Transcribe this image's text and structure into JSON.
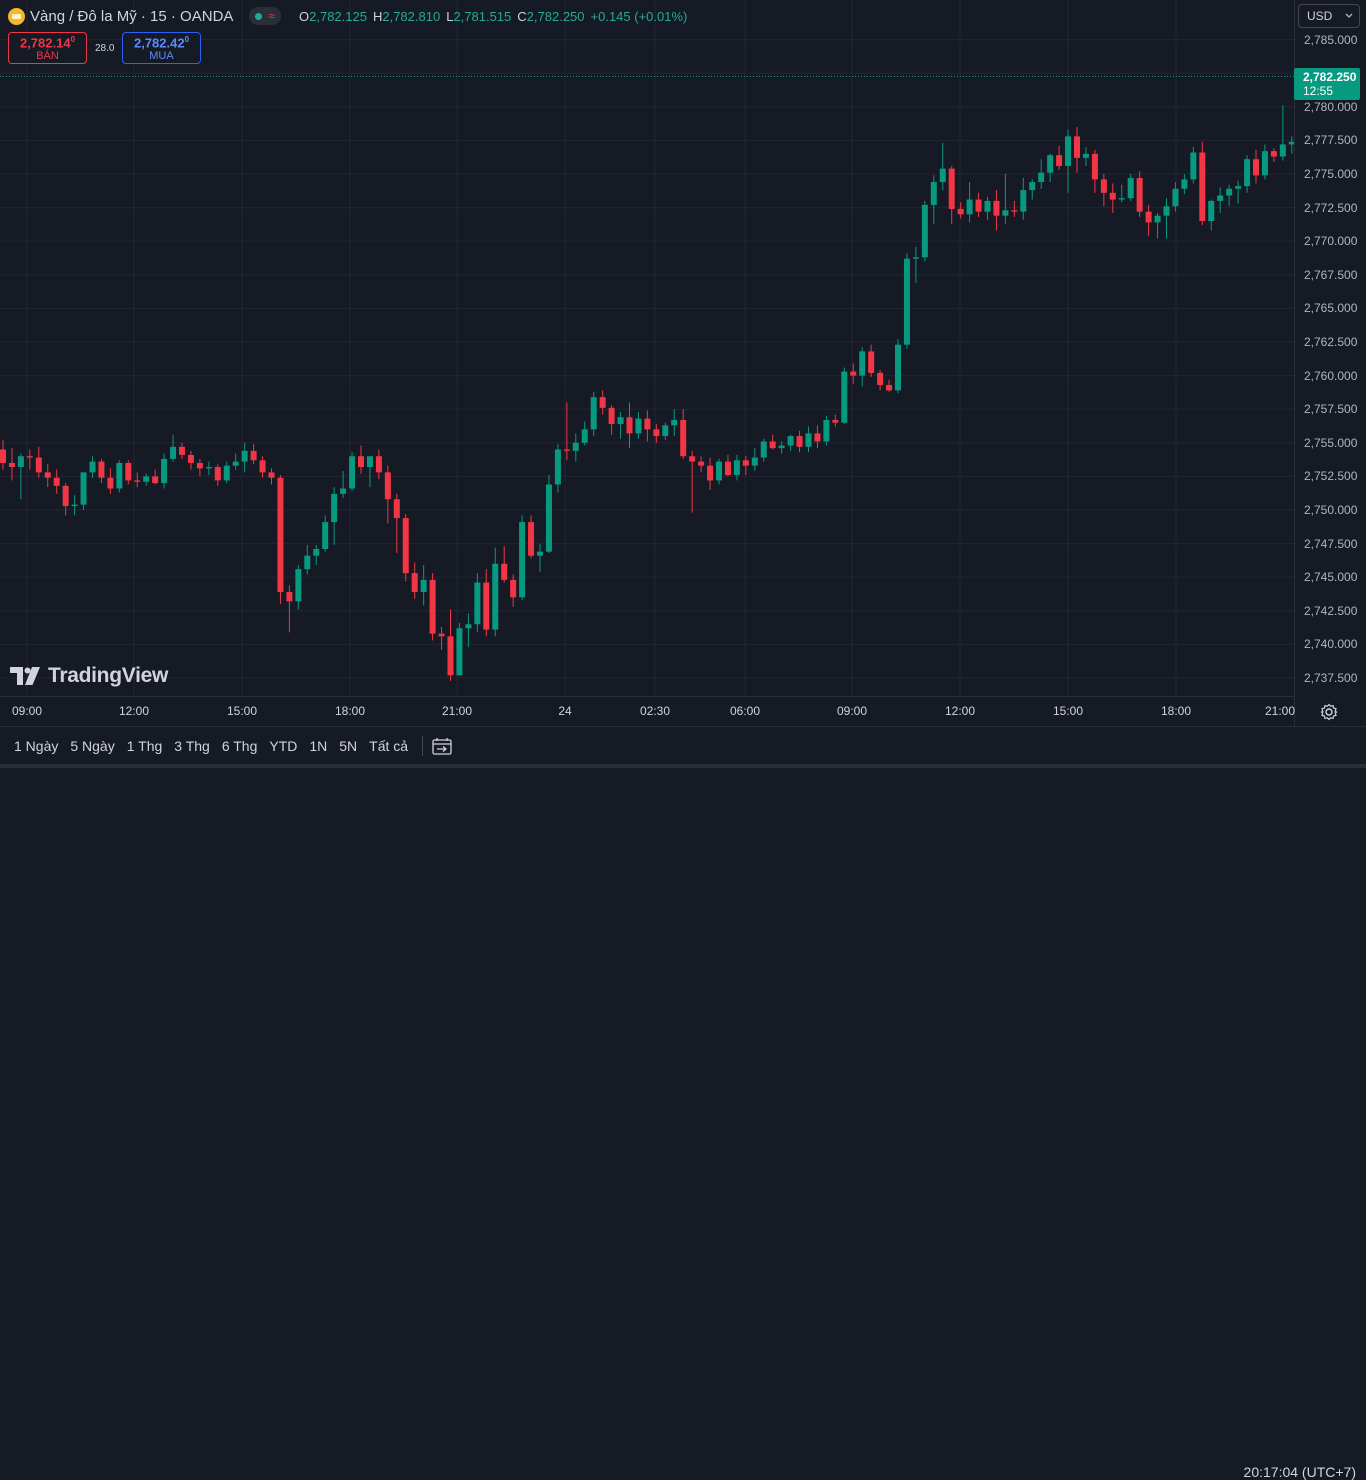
{
  "header": {
    "symbol": "Vàng / Đô la Mỹ · 15 · OANDA",
    "symbol_icon": "gold-coin-icon",
    "ohlc": [
      {
        "k": "O",
        "v": "2,782.125"
      },
      {
        "k": "H",
        "v": "2,782.810"
      },
      {
        "k": "L",
        "v": "2,781.515"
      },
      {
        "k": "C",
        "v": "2,782.250"
      }
    ],
    "change": "+0.145 (+0.01%)"
  },
  "trade": {
    "sell_price_main": "2,782.14",
    "sell_price_sup": "0",
    "sell_label": "BÁN",
    "spread": "28.0",
    "buy_price_main": "2,782.42",
    "buy_price_sup": "0",
    "buy_label": "MUA"
  },
  "currency": "USD",
  "last_price": {
    "price": "2,782.250",
    "countdown": "12:55"
  },
  "colors": {
    "up": "#089981",
    "down": "#f23645",
    "background": "#161a25",
    "grid": "#232632"
  },
  "brand": "TradingView",
  "time_labels": [
    "09:00",
    "12:00",
    "15:00",
    "18:00",
    "21:00",
    "24",
    "02:30",
    "06:00",
    "09:00",
    "12:00",
    "15:00",
    "18:00",
    "21:00"
  ],
  "ranges": [
    "1 Ngày",
    "5 Ngày",
    "1 Thg",
    "3 Thg",
    "6 Thg",
    "YTD",
    "1N",
    "5N",
    "Tất cả"
  ],
  "clock": "20:17:04 (UTC+7)",
  "chart_data": {
    "type": "candlestick",
    "y_tick_labels": [
      "2,785.000",
      "2,782.500",
      "2,780.000",
      "2,777.500",
      "2,775.000",
      "2,772.500",
      "2,770.000",
      "2,767.500",
      "2,765.000",
      "2,762.500",
      "2,760.000",
      "2,757.500",
      "2,755.000",
      "2,752.500",
      "2,750.000",
      "2,747.500",
      "2,745.000",
      "2,742.500",
      "2,740.000",
      "2,737.500"
    ],
    "ylim": [
      2736.0,
      2786.0
    ],
    "interval": "15m",
    "candles": [
      [
        2754.5,
        2755.2,
        2753.0,
        2753.5
      ],
      [
        2753.5,
        2754.6,
        2752.2,
        2753.2
      ],
      [
        2753.2,
        2754.2,
        2750.8,
        2754.0
      ],
      [
        2754.0,
        2754.5,
        2753.0,
        2753.9
      ],
      [
        2753.9,
        2754.7,
        2752.4,
        2752.8
      ],
      [
        2752.8,
        2753.4,
        2751.7,
        2752.4
      ],
      [
        2752.4,
        2753.0,
        2751.2,
        2751.8
      ],
      [
        2751.8,
        2752.0,
        2749.6,
        2750.3
      ],
      [
        2750.3,
        2751.1,
        2749.6,
        2750.4
      ],
      [
        2750.4,
        2752.8,
        2750.0,
        2752.8
      ],
      [
        2752.8,
        2754.0,
        2752.4,
        2753.6
      ],
      [
        2753.6,
        2753.8,
        2752.0,
        2752.4
      ],
      [
        2752.4,
        2753.1,
        2751.2,
        2751.6
      ],
      [
        2751.6,
        2753.7,
        2751.3,
        2753.5
      ],
      [
        2753.5,
        2753.7,
        2751.9,
        2752.2
      ],
      [
        2752.2,
        2752.8,
        2751.7,
        2752.1
      ],
      [
        2752.1,
        2752.7,
        2751.8,
        2752.5
      ],
      [
        2752.5,
        2753.0,
        2751.9,
        2752.0
      ],
      [
        2752.0,
        2754.2,
        2751.6,
        2753.8
      ],
      [
        2753.8,
        2755.6,
        2753.6,
        2754.7
      ],
      [
        2754.7,
        2755.0,
        2753.8,
        2754.1
      ],
      [
        2754.1,
        2754.4,
        2753.0,
        2753.5
      ],
      [
        2753.5,
        2753.8,
        2752.5,
        2753.1
      ],
      [
        2753.1,
        2753.6,
        2752.6,
        2753.2
      ],
      [
        2753.2,
        2753.4,
        2751.8,
        2752.2
      ],
      [
        2752.2,
        2753.6,
        2752.0,
        2753.3
      ],
      [
        2753.3,
        2754.2,
        2753.0,
        2753.6
      ],
      [
        2753.6,
        2755.0,
        2752.8,
        2754.4
      ],
      [
        2754.4,
        2754.9,
        2753.4,
        2753.7
      ],
      [
        2753.7,
        2754.0,
        2752.4,
        2752.8
      ],
      [
        2752.8,
        2753.1,
        2751.9,
        2752.4
      ],
      [
        2752.4,
        2752.6,
        2743.0,
        2743.9
      ],
      [
        2743.9,
        2744.4,
        2740.9,
        2743.2
      ],
      [
        2743.2,
        2745.9,
        2742.6,
        2745.6
      ],
      [
        2745.6,
        2747.4,
        2745.2,
        2746.6
      ],
      [
        2746.6,
        2747.4,
        2745.9,
        2747.1
      ],
      [
        2747.1,
        2749.6,
        2746.9,
        2749.1
      ],
      [
        2749.1,
        2751.7,
        2747.4,
        2751.2
      ],
      [
        2751.2,
        2752.9,
        2750.9,
        2751.6
      ],
      [
        2751.6,
        2754.3,
        2751.4,
        2754.0
      ],
      [
        2754.0,
        2754.8,
        2752.7,
        2753.2
      ],
      [
        2753.2,
        2754.0,
        2751.7,
        2754.0
      ],
      [
        2754.0,
        2754.5,
        2752.3,
        2752.8
      ],
      [
        2752.8,
        2753.3,
        2749.0,
        2750.8
      ],
      [
        2750.8,
        2751.2,
        2746.8,
        2749.4
      ],
      [
        2749.4,
        2749.7,
        2744.7,
        2745.3
      ],
      [
        2745.3,
        2746.1,
        2743.4,
        2743.9
      ],
      [
        2743.9,
        2745.9,
        2742.9,
        2744.8
      ],
      [
        2744.8,
        2745.3,
        2740.3,
        2740.8
      ],
      [
        2740.8,
        2741.3,
        2739.6,
        2740.6
      ],
      [
        2740.6,
        2742.6,
        2737.3,
        2737.7
      ],
      [
        2737.7,
        2741.6,
        2737.7,
        2741.2
      ],
      [
        2741.2,
        2742.3,
        2739.8,
        2741.5
      ],
      [
        2741.5,
        2745.3,
        2740.9,
        2744.6
      ],
      [
        2744.6,
        2745.6,
        2740.6,
        2741.1
      ],
      [
        2741.1,
        2747.2,
        2740.6,
        2746.0
      ],
      [
        2746.0,
        2747.3,
        2744.6,
        2744.8
      ],
      [
        2744.8,
        2745.2,
        2742.8,
        2743.5
      ],
      [
        2743.5,
        2749.6,
        2743.3,
        2749.1
      ],
      [
        2749.1,
        2749.6,
        2746.4,
        2746.6
      ],
      [
        2746.6,
        2747.5,
        2745.4,
        2746.9
      ],
      [
        2746.9,
        2752.6,
        2746.8,
        2751.9
      ],
      [
        2751.9,
        2754.9,
        2751.3,
        2754.5
      ],
      [
        2754.5,
        2758.0,
        2753.7,
        2754.4
      ],
      [
        2754.4,
        2755.7,
        2753.6,
        2755.0
      ],
      [
        2755.0,
        2756.6,
        2754.8,
        2756.0
      ],
      [
        2756.0,
        2758.8,
        2755.5,
        2758.4
      ],
      [
        2758.4,
        2758.9,
        2757.1,
        2757.6
      ],
      [
        2757.6,
        2757.8,
        2755.6,
        2756.4
      ],
      [
        2756.4,
        2757.3,
        2755.3,
        2756.9
      ],
      [
        2756.9,
        2758.0,
        2754.6,
        2755.7
      ],
      [
        2755.7,
        2757.3,
        2755.3,
        2756.8
      ],
      [
        2756.8,
        2757.4,
        2755.1,
        2756.0
      ],
      [
        2756.0,
        2756.4,
        2755.0,
        2755.5
      ],
      [
        2755.5,
        2756.5,
        2755.2,
        2756.3
      ],
      [
        2756.3,
        2757.5,
        2755.5,
        2756.7
      ],
      [
        2756.7,
        2757.5,
        2753.8,
        2754.0
      ],
      [
        2754.0,
        2754.4,
        2749.8,
        2753.6
      ],
      [
        2753.6,
        2754.0,
        2752.8,
        2753.3
      ],
      [
        2753.3,
        2753.9,
        2751.5,
        2752.2
      ],
      [
        2752.2,
        2753.8,
        2751.9,
        2753.6
      ],
      [
        2753.6,
        2754.1,
        2752.5,
        2752.6
      ],
      [
        2752.6,
        2754.1,
        2752.2,
        2753.7
      ],
      [
        2753.7,
        2754.0,
        2752.6,
        2753.3
      ],
      [
        2753.3,
        2754.6,
        2752.9,
        2753.9
      ],
      [
        2753.9,
        2755.3,
        2753.6,
        2755.1
      ],
      [
        2755.1,
        2755.6,
        2754.5,
        2754.6
      ],
      [
        2754.6,
        2755.1,
        2754.2,
        2754.8
      ],
      [
        2754.8,
        2755.6,
        2754.4,
        2755.5
      ],
      [
        2755.5,
        2755.9,
        2754.3,
        2754.7
      ],
      [
        2754.7,
        2756.2,
        2754.3,
        2755.7
      ],
      [
        2755.7,
        2756.3,
        2754.6,
        2755.1
      ],
      [
        2755.1,
        2757.0,
        2754.8,
        2756.7
      ],
      [
        2756.7,
        2757.1,
        2756.2,
        2756.5
      ],
      [
        2756.5,
        2760.6,
        2756.4,
        2760.3
      ],
      [
        2760.3,
        2760.9,
        2759.4,
        2760.0
      ],
      [
        2760.0,
        2762.1,
        2759.2,
        2761.8
      ],
      [
        2761.8,
        2762.3,
        2759.9,
        2760.2
      ],
      [
        2760.2,
        2760.4,
        2758.9,
        2759.3
      ],
      [
        2759.3,
        2759.7,
        2758.8,
        2758.9
      ],
      [
        2758.9,
        2762.7,
        2758.7,
        2762.3
      ],
      [
        2762.3,
        2769.1,
        2762.0,
        2768.7
      ],
      [
        2768.7,
        2769.6,
        2766.9,
        2768.8
      ],
      [
        2768.8,
        2773.0,
        2768.5,
        2772.7
      ],
      [
        2772.7,
        2774.9,
        2771.3,
        2774.4
      ],
      [
        2774.4,
        2777.3,
        2773.8,
        2775.4
      ],
      [
        2775.4,
        2775.6,
        2771.3,
        2772.4
      ],
      [
        2772.4,
        2772.9,
        2771.7,
        2772.0
      ],
      [
        2772.0,
        2774.4,
        2771.4,
        2773.1
      ],
      [
        2773.1,
        2773.6,
        2771.8,
        2772.2
      ],
      [
        2772.2,
        2773.3,
        2771.6,
        2773.0
      ],
      [
        2773.0,
        2773.8,
        2770.8,
        2771.9
      ],
      [
        2771.9,
        2775.0,
        2771.3,
        2772.3
      ],
      [
        2772.3,
        2773.0,
        2771.8,
        2772.2
      ],
      [
        2772.2,
        2774.7,
        2771.6,
        2773.8
      ],
      [
        2773.8,
        2774.6,
        2773.1,
        2774.4
      ],
      [
        2774.4,
        2776.1,
        2773.9,
        2775.1
      ],
      [
        2775.1,
        2776.5,
        2774.4,
        2776.4
      ],
      [
        2776.4,
        2777.1,
        2775.3,
        2775.6
      ],
      [
        2775.6,
        2778.3,
        2773.6,
        2777.8
      ],
      [
        2777.8,
        2778.5,
        2775.1,
        2776.2
      ],
      [
        2776.2,
        2777.0,
        2775.6,
        2776.5
      ],
      [
        2776.5,
        2776.8,
        2773.6,
        2774.6
      ],
      [
        2774.6,
        2775.0,
        2772.6,
        2773.6
      ],
      [
        2773.6,
        2774.3,
        2772.1,
        2773.1
      ],
      [
        2773.1,
        2774.2,
        2772.9,
        2773.2
      ],
      [
        2773.2,
        2775.0,
        2773.0,
        2774.7
      ],
      [
        2774.7,
        2775.2,
        2771.8,
        2772.2
      ],
      [
        2772.2,
        2772.7,
        2770.4,
        2771.4
      ],
      [
        2771.4,
        2772.1,
        2770.2,
        2771.9
      ],
      [
        2771.9,
        2773.2,
        2770.2,
        2772.6
      ],
      [
        2772.6,
        2774.4,
        2772.2,
        2773.9
      ],
      [
        2773.9,
        2775.0,
        2773.5,
        2774.6
      ],
      [
        2774.6,
        2777.0,
        2774.3,
        2776.6
      ],
      [
        2776.6,
        2777.4,
        2771.2,
        2771.5
      ],
      [
        2771.5,
        2773.1,
        2770.8,
        2773.0
      ],
      [
        2773.0,
        2774.0,
        2772.1,
        2773.4
      ],
      [
        2773.4,
        2774.2,
        2772.6,
        2773.9
      ],
      [
        2773.9,
        2774.5,
        2772.8,
        2774.1
      ],
      [
        2774.1,
        2776.4,
        2773.6,
        2776.1
      ],
      [
        2776.1,
        2776.8,
        2774.3,
        2774.9
      ],
      [
        2774.9,
        2777.2,
        2774.6,
        2776.7
      ],
      [
        2776.7,
        2776.9,
        2775.9,
        2776.3
      ],
      [
        2776.3,
        2780.1,
        2776.0,
        2777.2
      ],
      [
        2777.2,
        2777.8,
        2776.5,
        2777.4
      ],
      [
        2777.4,
        2777.9,
        2776.6,
        2777.1
      ],
      [
        2777.1,
        2778.9,
        2776.9,
        2778.4
      ],
      [
        2778.4,
        2778.9,
        2777.1,
        2778.4
      ],
      [
        2778.4,
        2778.8,
        2778.0,
        2778.2
      ],
      [
        2778.2,
        2782.0,
        2777.8,
        2781.6
      ],
      [
        2781.6,
        2782.8,
        2781.5,
        2782.25
      ]
    ]
  }
}
